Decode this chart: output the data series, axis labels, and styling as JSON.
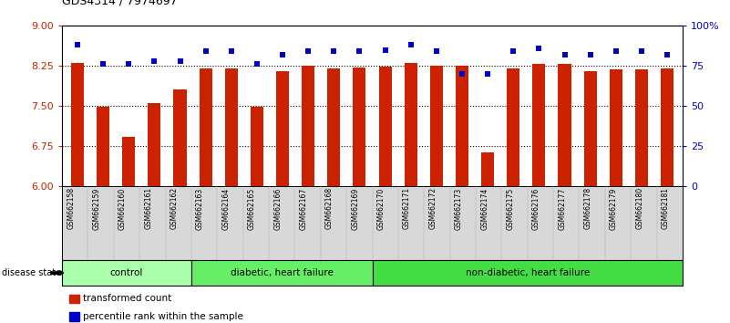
{
  "title": "GDS4314 / 7974697",
  "samples": [
    "GSM662158",
    "GSM662159",
    "GSM662160",
    "GSM662161",
    "GSM662162",
    "GSM662163",
    "GSM662164",
    "GSM662165",
    "GSM662166",
    "GSM662167",
    "GSM662168",
    "GSM662169",
    "GSM662170",
    "GSM662171",
    "GSM662172",
    "GSM662173",
    "GSM662174",
    "GSM662175",
    "GSM662176",
    "GSM662177",
    "GSM662178",
    "GSM662179",
    "GSM662180",
    "GSM662181"
  ],
  "red_values": [
    8.3,
    7.48,
    6.92,
    7.55,
    7.8,
    8.2,
    8.2,
    7.48,
    8.15,
    8.25,
    8.2,
    8.22,
    8.24,
    8.3,
    8.25,
    8.25,
    6.62,
    8.2,
    8.28,
    8.28,
    8.15,
    8.18,
    8.18,
    8.2
  ],
  "blue_values": [
    88,
    76,
    76,
    78,
    78,
    84,
    84,
    76,
    82,
    84,
    84,
    84,
    85,
    88,
    84,
    70,
    70,
    84,
    86,
    82,
    82,
    84,
    84,
    82
  ],
  "ylim_left": [
    6,
    9
  ],
  "ylim_right": [
    0,
    100
  ],
  "yticks_left": [
    6,
    6.75,
    7.5,
    8.25,
    9
  ],
  "yticks_right": [
    0,
    25,
    50,
    75,
    100
  ],
  "ytick_labels_right": [
    "0",
    "25",
    "50",
    "75",
    "100%"
  ],
  "hlines": [
    6.75,
    7.5,
    8.25
  ],
  "groups": [
    {
      "label": "control",
      "start": 0,
      "end": 4,
      "color": "#aaffaa"
    },
    {
      "label": "diabetic, heart failure",
      "start": 5,
      "end": 11,
      "color": "#66ee66"
    },
    {
      "label": "non-diabetic, heart failure",
      "start": 12,
      "end": 23,
      "color": "#44dd44"
    }
  ],
  "bar_color": "#cc2200",
  "dot_color": "#0000cc",
  "legend_items": [
    {
      "label": "transformed count",
      "color": "#cc2200"
    },
    {
      "label": "percentile rank within the sample",
      "color": "#0000cc"
    }
  ],
  "disease_state_label": "disease state",
  "background_color": "#ffffff",
  "tick_area_bg": "#d8d8d8",
  "tick_label_color_left": "#cc2200",
  "tick_label_color_right": "#0000cc",
  "bar_width": 0.5
}
